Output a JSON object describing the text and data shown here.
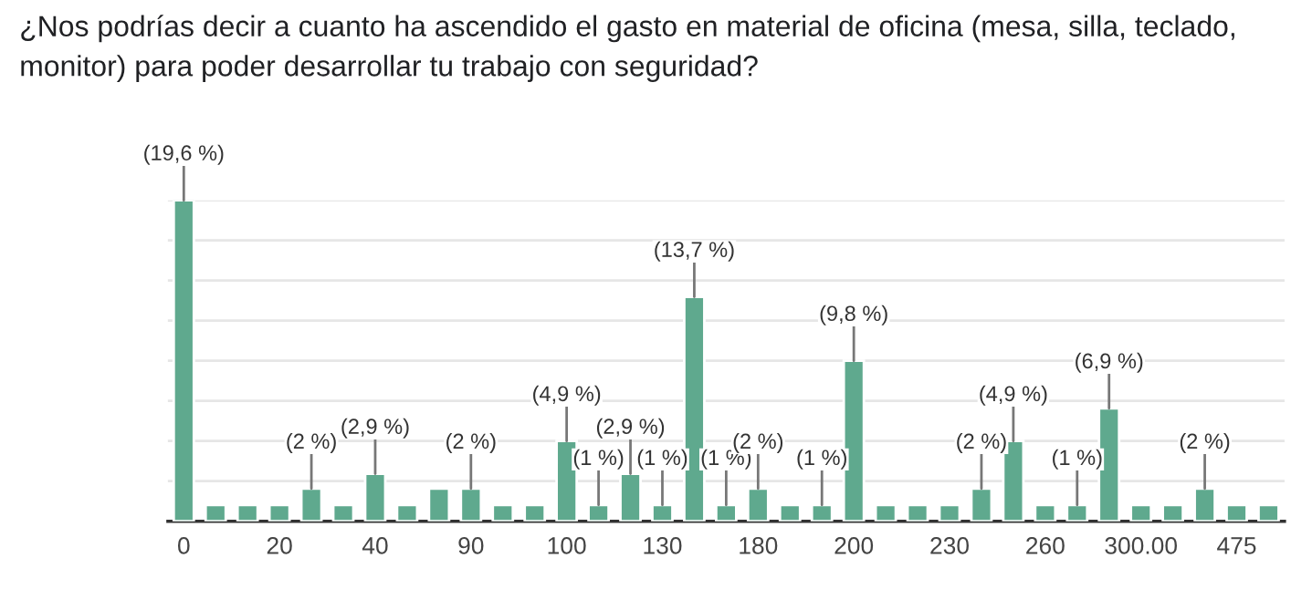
{
  "chart_data": {
    "type": "bar",
    "title": "¿Nos podrías decir a cuanto ha ascendido el gasto en material de oficina (mesa, silla, teclado, monitor) para poder desarrollar tu trabajo con seguridad?",
    "categories": [
      "0",
      null,
      null,
      "20",
      null,
      null,
      "40",
      null,
      null,
      "90",
      null,
      null,
      "100",
      null,
      null,
      "130",
      null,
      null,
      "180",
      null,
      null,
      "200",
      null,
      null,
      "230",
      null,
      null,
      "260",
      null,
      null,
      "300.00",
      null,
      null,
      "475",
      null
    ],
    "values": [
      19.6,
      1,
      1,
      1,
      2,
      1,
      2.9,
      1,
      2,
      2,
      1,
      1,
      4.9,
      1,
      2.9,
      1,
      13.7,
      1,
      2,
      1,
      1,
      9.8,
      1,
      1,
      1,
      2,
      4.9,
      1,
      1,
      6.9,
      1,
      1,
      2,
      1,
      1
    ],
    "value_labels": [
      "(19,6 %)",
      null,
      null,
      null,
      "(2 %)",
      null,
      "(2,9 %)",
      null,
      null,
      "(2 %)",
      null,
      null,
      "(4,9 %)",
      "(1 %)",
      "(2,9 %)",
      "(1 %)",
      "(13,7 %)",
      "(1 %)",
      "(2 %)",
      null,
      "(1 %)",
      "(9,8 %)",
      null,
      null,
      null,
      "(2 %)",
      "(4,9 %)",
      null,
      "(1 %)",
      "(6,9 %)",
      null,
      null,
      "(2 %)",
      null,
      null
    ],
    "color": "#5fa98e",
    "ylim": [
      0,
      19.6
    ],
    "yticks": [
      {
        "value": 0,
        "label": null
      },
      {
        "value": 2.45,
        "label": null
      },
      {
        "value": 4.9,
        "label": null
      },
      {
        "value": 7.35,
        "label": null
      },
      {
        "value": 9.8,
        "label": null
      },
      {
        "value": 12.25,
        "label": null
      },
      {
        "value": 14.7,
        "label": null
      },
      {
        "value": 17.15,
        "label": null
      },
      {
        "value": 19.6,
        "label": null
      }
    ],
    "grid": "y",
    "tick_labels": "x"
  }
}
